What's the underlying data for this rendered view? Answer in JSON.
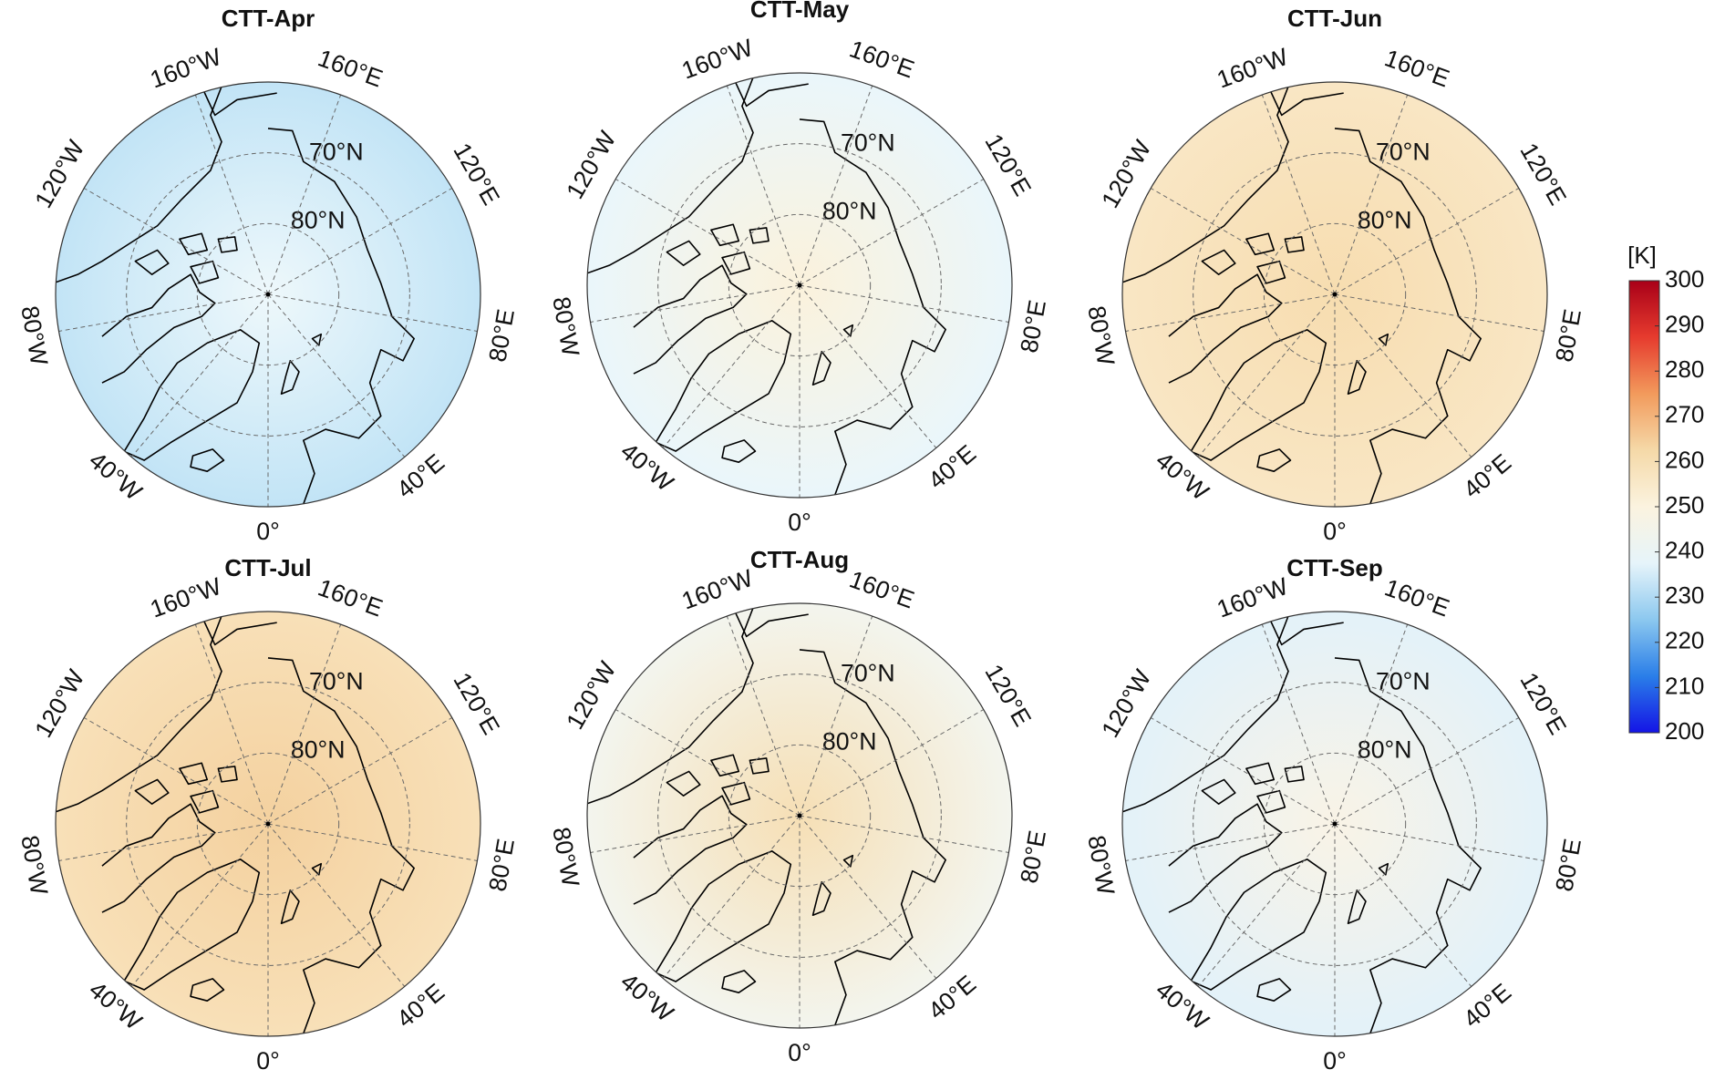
{
  "panels": [
    {
      "title": "CTT-Apr",
      "shading": [
        "#eef8fb",
        "#c2e4f6"
      ]
    },
    {
      "title": "CTT-May",
      "shading": [
        "#fbf2dc",
        "#eaf6fb"
      ]
    },
    {
      "title": "CTT-Jun",
      "shading": [
        "#f7ddb0",
        "#f9e6c4"
      ]
    },
    {
      "title": "CTT-Jul",
      "shading": [
        "#f4d19f",
        "#f8e0b8"
      ]
    },
    {
      "title": "CTT-Aug",
      "shading": [
        "#f6dfb5",
        "#f3f5ee"
      ]
    },
    {
      "title": "CTT-Sep",
      "shading": [
        "#f9f3e6",
        "#e3f2f9"
      ]
    }
  ],
  "map": {
    "lat_limit": 60,
    "parallels": [
      {
        "value": 70,
        "label": "70°N"
      },
      {
        "value": 80,
        "label": "80°N"
      }
    ],
    "meridians": [
      {
        "value": 0,
        "label": "0°"
      },
      {
        "value": 40,
        "label": "40°E"
      },
      {
        "value": 80,
        "label": "80°E"
      },
      {
        "value": 120,
        "label": "120°E"
      },
      {
        "value": 160,
        "label": "160°E"
      },
      {
        "value": -160,
        "label": "160°W"
      },
      {
        "value": -120,
        "label": "120°W"
      },
      {
        "value": -80,
        "label": "80°W"
      },
      {
        "value": -40,
        "label": "40°W"
      }
    ]
  },
  "colorbar": {
    "label": "[K]",
    "range": [
      200,
      300
    ],
    "ticks": [
      200,
      210,
      220,
      230,
      240,
      250,
      260,
      270,
      280,
      290,
      300
    ],
    "colors": [
      "#1414e6",
      "#2a7ee8",
      "#8cc8ef",
      "#e6f4fa",
      "#fbf3df",
      "#f5d9a8",
      "#f29a5c",
      "#e63b2e",
      "#a80018"
    ]
  }
}
